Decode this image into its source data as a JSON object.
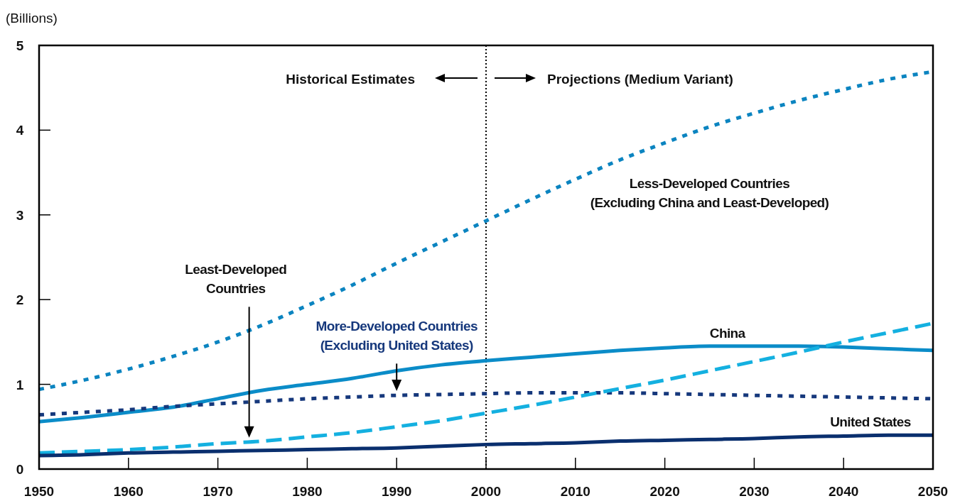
{
  "chart_data": {
    "type": "line",
    "ylabel": "(Billions)",
    "x": [
      1950,
      1955,
      1960,
      1965,
      1970,
      1975,
      1980,
      1985,
      1990,
      1995,
      2000,
      2005,
      2010,
      2015,
      2020,
      2025,
      2030,
      2035,
      2040,
      2045,
      2050
    ],
    "series": [
      {
        "name": "Less-Developed Countries\n(Excluding China and Least-Developed)",
        "color": "#0b84c0",
        "line_style": "dotted",
        "values": [
          0.94,
          1.05,
          1.18,
          1.33,
          1.5,
          1.7,
          1.93,
          2.17,
          2.43,
          2.68,
          2.93,
          3.18,
          3.42,
          3.65,
          3.85,
          4.04,
          4.2,
          4.35,
          4.48,
          4.6,
          4.69
        ]
      },
      {
        "name": "China",
        "color": "#0b8cc8",
        "line_style": "solid",
        "values": [
          0.56,
          0.61,
          0.67,
          0.73,
          0.83,
          0.93,
          1.0,
          1.07,
          1.16,
          1.23,
          1.28,
          1.32,
          1.36,
          1.4,
          1.43,
          1.45,
          1.45,
          1.45,
          1.44,
          1.42,
          1.4
        ]
      },
      {
        "name": "More-Developed Countries\n(Excluding United States)",
        "color": "#16387c",
        "line_style": "dotted",
        "values": [
          0.64,
          0.67,
          0.7,
          0.74,
          0.77,
          0.8,
          0.83,
          0.85,
          0.87,
          0.88,
          0.89,
          0.9,
          0.9,
          0.9,
          0.89,
          0.88,
          0.87,
          0.86,
          0.85,
          0.84,
          0.83
        ]
      },
      {
        "name": "Least-Developed\nCountries",
        "color": "#14b0e0",
        "line_style": "dashed",
        "values": [
          0.19,
          0.21,
          0.23,
          0.26,
          0.3,
          0.33,
          0.38,
          0.43,
          0.5,
          0.57,
          0.66,
          0.75,
          0.85,
          0.95,
          1.05,
          1.16,
          1.27,
          1.38,
          1.5,
          1.61,
          1.72
        ]
      },
      {
        "name": "United States",
        "color": "#0a2f6e",
        "line_style": "solid",
        "values": [
          0.16,
          0.17,
          0.19,
          0.2,
          0.21,
          0.22,
          0.23,
          0.24,
          0.25,
          0.27,
          0.29,
          0.3,
          0.31,
          0.33,
          0.34,
          0.35,
          0.36,
          0.38,
          0.39,
          0.4,
          0.4
        ]
      }
    ],
    "xlim": [
      1950,
      2050
    ],
    "xticks": [
      1950,
      1960,
      1970,
      1980,
      1990,
      2000,
      2010,
      2020,
      2030,
      2040,
      2050
    ],
    "ylim": [
      0,
      5
    ],
    "yticks": [
      0,
      1,
      2,
      3,
      4,
      5
    ],
    "grid": false,
    "marker": "none",
    "ref_lines": [
      {
        "axis": "x",
        "value": 2000,
        "color": "#000000",
        "line_style": "dotted"
      }
    ],
    "annotations": [
      "Historical Estimates",
      "Projections (Medium Variant)"
    ]
  }
}
